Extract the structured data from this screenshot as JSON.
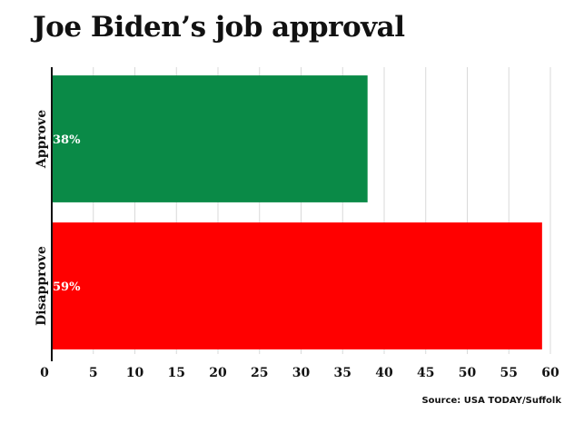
{
  "chart_data": {
    "type": "bar",
    "orientation": "horizontal",
    "title": "Joe Biden’s job approval",
    "categories": [
      "Approve",
      "Disapprove"
    ],
    "values": [
      38,
      59
    ],
    "data_labels": [
      "38%",
      "59%"
    ],
    "colors": [
      "#0a8a47",
      "#ff0000"
    ],
    "xlim": [
      0,
      60
    ],
    "xticks": [
      0,
      5,
      10,
      15,
      20,
      25,
      30,
      35,
      40,
      45,
      50,
      55,
      60
    ],
    "grid": true,
    "source": "Source: USA TODAY/Suffolk"
  }
}
